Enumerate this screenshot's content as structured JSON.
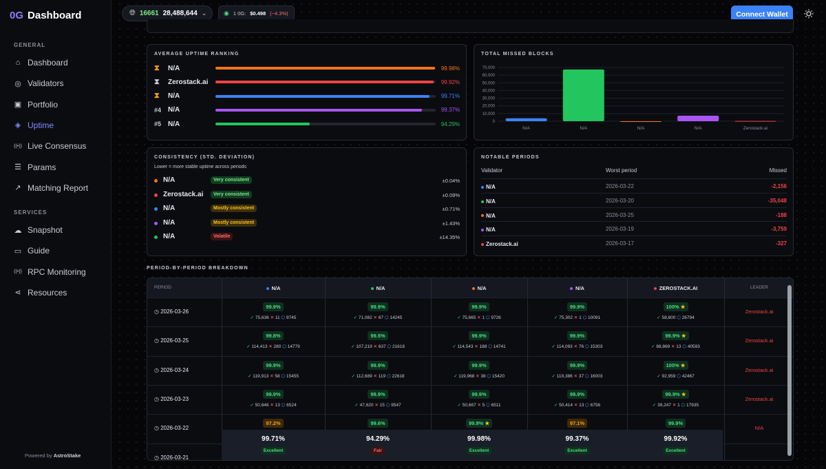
{
  "brand": {
    "logo": "0G",
    "name": "Dashboard"
  },
  "sidebar": {
    "general_label": "GENERAL",
    "general": [
      {
        "label": "Dashboard",
        "icon": "home-icon"
      },
      {
        "label": "Validators",
        "icon": "user-circle-icon"
      },
      {
        "label": "Portfolio",
        "icon": "wallet-icon"
      },
      {
        "label": "Uptime",
        "icon": "uptime-icon",
        "active": true
      },
      {
        "label": "Live Consensus",
        "icon": "broadcast-icon"
      },
      {
        "label": "Params",
        "icon": "sliders-icon"
      },
      {
        "label": "Matching Report",
        "icon": "share-icon"
      }
    ],
    "services_label": "SERVICES",
    "services": [
      {
        "label": "Snapshot",
        "icon": "cloud-icon"
      },
      {
        "label": "Guide",
        "icon": "book-icon"
      },
      {
        "label": "RPC Monitoring",
        "icon": "signal-icon"
      },
      {
        "label": "Resources",
        "icon": "network-icon"
      }
    ],
    "powered_prefix": "Powered by",
    "powered_brand": "AstroStake"
  },
  "topbar": {
    "network_id": "16661",
    "block": "28,488,644",
    "price_label": "1 0G:",
    "price": "$0.498",
    "change": "(−4.3%)",
    "connect": "Connect Wallet"
  },
  "ranking": {
    "title": "AVERAGE UPTIME RANKING",
    "rows": [
      {
        "rank": "⧗",
        "name": "N/A",
        "pct": "99.98%",
        "value": 99.98,
        "color": "#f97316"
      },
      {
        "rank": "⧗",
        "name": "Zerostack.ai",
        "pct": "99.92%",
        "value": 99.92,
        "color": "#ef4444"
      },
      {
        "rank": "⧗",
        "name": "N/A",
        "pct": "99.71%",
        "value": 99.71,
        "color": "#3b82f6"
      },
      {
        "rank": "#4",
        "name": "N/A",
        "pct": "99.37%",
        "value": 99.37,
        "color": "#a855f7"
      },
      {
        "rank": "#5",
        "name": "N/A",
        "pct": "94.29%",
        "value": 94.29,
        "color": "#22c55e"
      }
    ]
  },
  "missed": {
    "title": "TOTAL MISSED BLOCKS",
    "yticks": [
      "70,000",
      "60,000",
      "50,000",
      "40,000",
      "30,000",
      "20,000",
      "10,000",
      "0"
    ],
    "chart_data": {
      "type": "bar",
      "categories": [
        "N/A",
        "N/A",
        "N/A",
        "N/A",
        "Zerostack.ai"
      ],
      "values": [
        3759,
        67400,
        0,
        7200,
        350
      ],
      "colors": [
        "#3b82f6",
        "#22c55e",
        "#f97316",
        "#a855f7",
        "#ef4444"
      ],
      "ylim": [
        0,
        70000
      ]
    }
  },
  "consistency": {
    "title": "CONSISTENCY (STD. DEVIATION)",
    "subtitle": "Lower = more stable uptime across periods",
    "rows": [
      {
        "name": "N/A",
        "badge": "Very consistent",
        "val": "±0.04%",
        "color": "#f97316",
        "type": "good"
      },
      {
        "name": "Zerostack.ai",
        "badge": "Very consistent",
        "val": "±0.09%",
        "color": "#ef4444",
        "type": "good"
      },
      {
        "name": "N/A",
        "badge": "Mostly consistent",
        "val": "±0.71%",
        "color": "#3b82f6",
        "type": "mid"
      },
      {
        "name": "N/A",
        "badge": "Mostly consistent",
        "val": "±1.43%",
        "color": "#a855f7",
        "type": "mid"
      },
      {
        "name": "N/A",
        "badge": "Volatile",
        "val": "±14.35%",
        "color": "#22c55e",
        "type": "bad"
      }
    ]
  },
  "notable": {
    "title": "NOTABLE PERIODS",
    "headers": [
      "Validator",
      "Worst period",
      "Missed"
    ],
    "rows": [
      {
        "name": "N/A",
        "date": "2026-03-22",
        "missed": "-2,156",
        "color": "#3b82f6"
      },
      {
        "name": "N/A",
        "date": "2026-03-20",
        "missed": "-35,048",
        "color": "#22c55e"
      },
      {
        "name": "N/A",
        "date": "2026-03-25",
        "missed": "-188",
        "color": "#f97316"
      },
      {
        "name": "N/A",
        "date": "2026-03-19",
        "missed": "-3,759",
        "color": "#a855f7"
      },
      {
        "name": "Zerostack.ai",
        "date": "2026-03-17",
        "missed": "-327",
        "color": "#ef4444"
      }
    ]
  },
  "breakdown": {
    "title": "PERIOD-BY-PERIOD BREAKDOWN",
    "headers": [
      "PERIOD",
      "N/A",
      "N/A",
      "N/A",
      "N/A",
      "ZEROSTACK.AI",
      "LEADER"
    ],
    "header_colors": [
      "#3b82f6",
      "#22c55e",
      "#f97316",
      "#a855f7",
      "#ef4444"
    ],
    "rows": [
      {
        "period": "2026-03-26",
        "leader": "Zerostack.ai",
        "cells": [
          {
            "p": "99.9%",
            "s": "75,636",
            "x": "11",
            "b": "9745"
          },
          {
            "p": "99.9%",
            "s": "71,082",
            "x": "67",
            "b": "14245"
          },
          {
            "p": "99.9%",
            "s": "75,665",
            "x": "1",
            "b": "9726"
          },
          {
            "p": "99.9%",
            "s": "75,302",
            "x": "1",
            "b": "10091"
          },
          {
            "p": "100%",
            "s": "58,600",
            "x": "",
            "b": "26794",
            "star": true
          }
        ]
      },
      {
        "period": "2026-03-25",
        "leader": "Zerostack.ai",
        "cells": [
          {
            "p": "99.8%",
            "s": "114,413",
            "x": "280",
            "b": "14779"
          },
          {
            "p": "99.5%",
            "s": "107,219",
            "x": "637",
            "b": "21618"
          },
          {
            "p": "99.9%",
            "s": "114,543",
            "x": "188",
            "b": "14741"
          },
          {
            "p": "99.9%",
            "s": "114,093",
            "x": "76",
            "b": "15303"
          },
          {
            "p": "99.9%",
            "s": "88,869",
            "x": "13",
            "b": "40593",
            "star": true
          }
        ]
      },
      {
        "period": "2026-03-24",
        "leader": "Zerostack.ai",
        "cells": [
          {
            "p": "99.9%",
            "s": "119,913",
            "x": "58",
            "b": "15455"
          },
          {
            "p": "99.9%",
            "s": "112,689",
            "x": "119",
            "b": "22618"
          },
          {
            "p": "99.9%",
            "s": "119,968",
            "x": "38",
            "b": "15420"
          },
          {
            "p": "99.9%",
            "s": "119,386",
            "x": "37",
            "b": "16003"
          },
          {
            "p": "100%",
            "s": "92,959",
            "x": "",
            "b": "42467",
            "star": true
          }
        ]
      },
      {
        "period": "2026-03-23",
        "leader": "Zerostack.ai",
        "cells": [
          {
            "p": "99.9%",
            "s": "50,646",
            "x": "13",
            "b": "6524"
          },
          {
            "p": "99.9%",
            "s": "47,620",
            "x": "15",
            "b": "9547"
          },
          {
            "p": "99.9%",
            "s": "50,667",
            "x": "5",
            "b": "6511"
          },
          {
            "p": "99.9%",
            "s": "50,414",
            "x": "13",
            "b": "6756"
          },
          {
            "p": "99.9%",
            "s": "39,247",
            "x": "1",
            "b": "17935",
            "star": true
          }
        ]
      },
      {
        "period": "2026-03-22",
        "leader": "N/A",
        "cells": [
          {
            "p": "97.2%",
            "warn": true
          },
          {
            "p": "99.6%"
          },
          {
            "p": "99.9%",
            "star": true
          },
          {
            "p": "97.1%",
            "warn": true
          },
          {
            "p": "99.9%"
          }
        ]
      },
      {
        "period": "2026-03-21",
        "leader": "",
        "cells": []
      }
    ],
    "averages": [
      {
        "v": "99.71%",
        "label": "Excellent",
        "type": "good"
      },
      {
        "v": "94.29%",
        "label": "Fair",
        "type": "bad"
      },
      {
        "v": "99.98%",
        "label": "Excellent",
        "type": "good"
      },
      {
        "v": "99.37%",
        "label": "Excellent",
        "type": "good"
      },
      {
        "v": "99.92%",
        "label": "Excellent",
        "type": "good"
      }
    ]
  }
}
